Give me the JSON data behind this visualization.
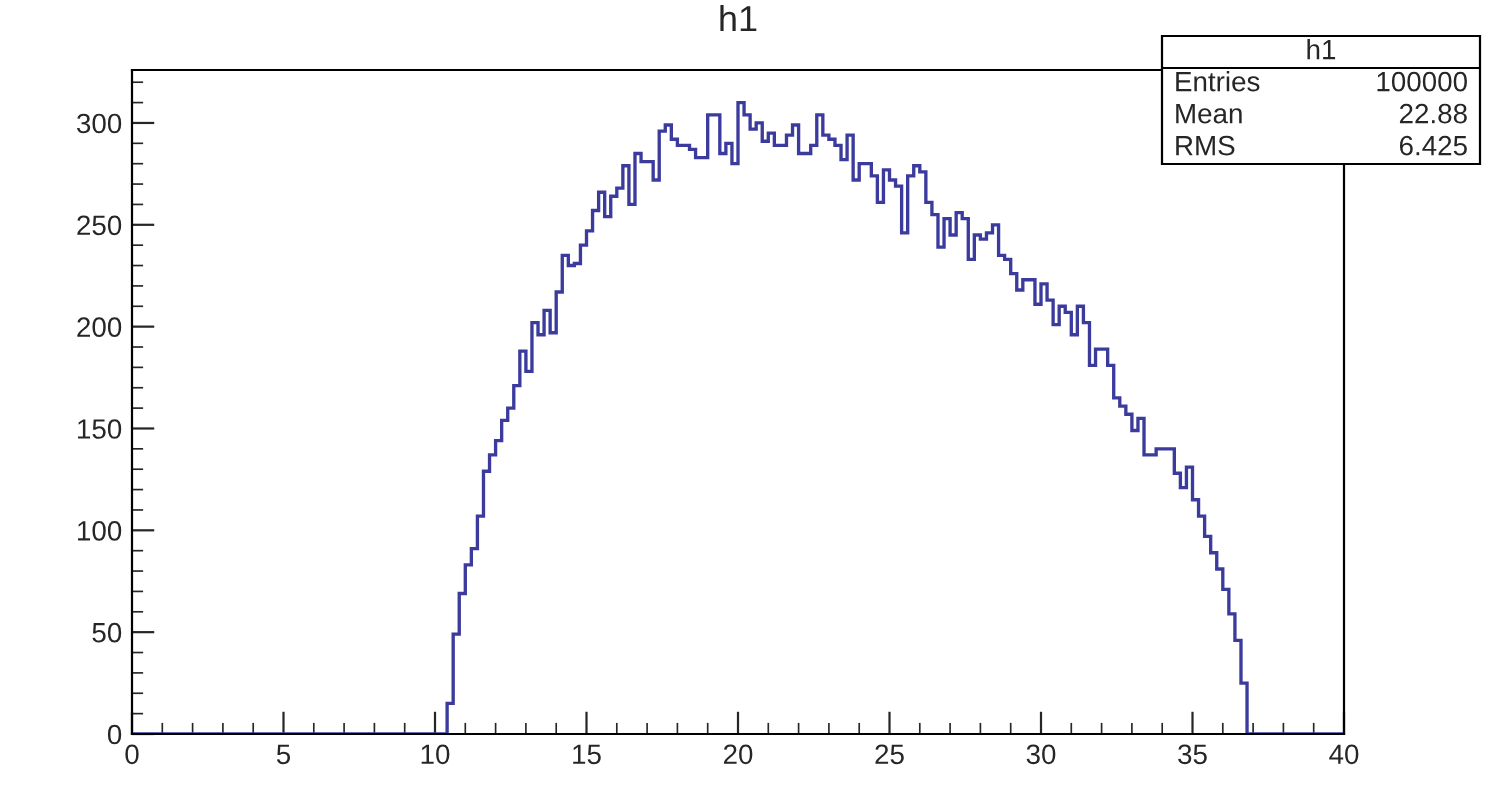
{
  "chart_data": {
    "type": "histogram",
    "title": "h1",
    "bins": [
      0,
      0.2,
      0.4,
      0.6,
      0.8,
      1,
      1.2,
      1.4,
      1.6,
      1.8,
      2,
      2.2,
      2.4,
      2.6,
      2.8,
      3,
      3.2,
      3.4,
      3.6,
      3.8,
      4,
      4.2,
      4.4,
      4.6,
      4.8,
      5,
      5.2,
      5.4,
      5.6,
      5.8,
      6,
      6.2,
      6.4,
      6.6,
      6.8,
      7,
      7.2,
      7.4,
      7.6,
      7.8,
      8,
      8.2,
      8.4,
      8.6,
      8.8,
      9,
      9.2,
      9.4,
      9.6,
      9.8,
      10,
      10.2,
      10.4,
      10.6,
      10.8,
      11,
      11.2,
      11.4,
      11.6,
      11.8,
      12,
      12.2,
      12.4,
      12.6,
      12.8,
      13,
      13.2,
      13.4,
      13.6,
      13.8,
      14,
      14.2,
      14.4,
      14.6,
      14.8,
      15,
      15.2,
      15.4,
      15.6,
      15.8,
      16,
      16.2,
      16.4,
      16.6,
      16.8,
      17,
      17.2,
      17.4,
      17.6,
      17.8,
      18,
      18.2,
      18.4,
      18.6,
      18.8,
      19,
      19.2,
      19.4,
      19.6,
      19.8,
      20,
      20.2,
      20.4,
      20.6,
      20.8,
      21,
      21.2,
      21.4,
      21.6,
      21.8,
      22,
      22.2,
      22.4,
      22.6,
      22.8,
      23,
      23.2,
      23.4,
      23.6,
      23.8,
      24,
      24.2,
      24.4,
      24.6,
      24.8,
      25,
      25.2,
      25.4,
      25.6,
      25.8,
      26,
      26.2,
      26.4,
      26.6,
      26.8,
      27,
      27.2,
      27.4,
      27.6,
      27.8,
      28,
      28.2,
      28.4,
      28.6,
      28.8,
      29,
      29.2,
      29.4,
      29.6,
      29.8,
      30,
      30.2,
      30.4,
      30.6,
      30.8,
      31,
      31.2,
      31.4,
      31.6,
      31.8,
      32,
      32.2,
      32.4,
      32.6,
      32.8,
      33,
      33.2,
      33.4,
      33.6,
      33.8,
      34,
      34.2,
      34.4,
      34.6,
      34.8,
      35,
      35.2,
      35.4,
      35.6,
      35.8,
      36,
      36.2,
      36.4,
      36.6,
      36.8,
      37,
      37.2,
      37.4,
      37.6,
      37.8,
      38,
      38.2,
      38.4,
      38.6,
      38.8,
      39,
      39.2,
      39.4,
      39.6,
      39.8,
      40
    ],
    "values": [
      0,
      0,
      0,
      0,
      0,
      0,
      0,
      0,
      0,
      0,
      0,
      0,
      0,
      0,
      0,
      0,
      0,
      0,
      0,
      0,
      0,
      0,
      0,
      0,
      0,
      0,
      0,
      0,
      0,
      0,
      0,
      0,
      0,
      0,
      0,
      0,
      0,
      0,
      0,
      0,
      0,
      0,
      0,
      0,
      0,
      0,
      0,
      0,
      0,
      0,
      0,
      0,
      15,
      49,
      69,
      83,
      91,
      107,
      129,
      137,
      144,
      154,
      160,
      171,
      188,
      178,
      202,
      196,
      208,
      197,
      217,
      235,
      230,
      231,
      240,
      247,
      257,
      266,
      254,
      264,
      268,
      279,
      260,
      285,
      281,
      281,
      272,
      296,
      299,
      292,
      289,
      289,
      287,
      283,
      283,
      304,
      304,
      285,
      290,
      280,
      310,
      304,
      297,
      300,
      291,
      295,
      289,
      289,
      294,
      299,
      285,
      285,
      289,
      304,
      294,
      292,
      289,
      282,
      294,
      272,
      280,
      280,
      274,
      261,
      277,
      272,
      269,
      246,
      274,
      279,
      276,
      261,
      255,
      239,
      253,
      245,
      256,
      253,
      233,
      245,
      243,
      246,
      250,
      235,
      233,
      226,
      218,
      223,
      223,
      211,
      221,
      213,
      201,
      210,
      207,
      196,
      210,
      202,
      181,
      189,
      189,
      181,
      165,
      161,
      157,
      149,
      155,
      137,
      137,
      140,
      140,
      140,
      128,
      121,
      131,
      115,
      107,
      97,
      89,
      81,
      71,
      59,
      46,
      25,
      0,
      0,
      0,
      0,
      0,
      0,
      0,
      0,
      0,
      0,
      0,
      0,
      0,
      0,
      0,
      0
    ],
    "color": "#3b3b9e",
    "xlim": [
      0,
      40
    ],
    "xticks": [
      0,
      5,
      10,
      15,
      20,
      25,
      30,
      35,
      40
    ],
    "ylim": [
      0,
      326
    ],
    "yticks": [
      0,
      50,
      100,
      150,
      200,
      250,
      300
    ],
    "grid": false,
    "annotations": [
      "h1",
      "Entries",
      "100000",
      "Mean",
      "22.88",
      "RMS",
      "6.425"
    ]
  }
}
